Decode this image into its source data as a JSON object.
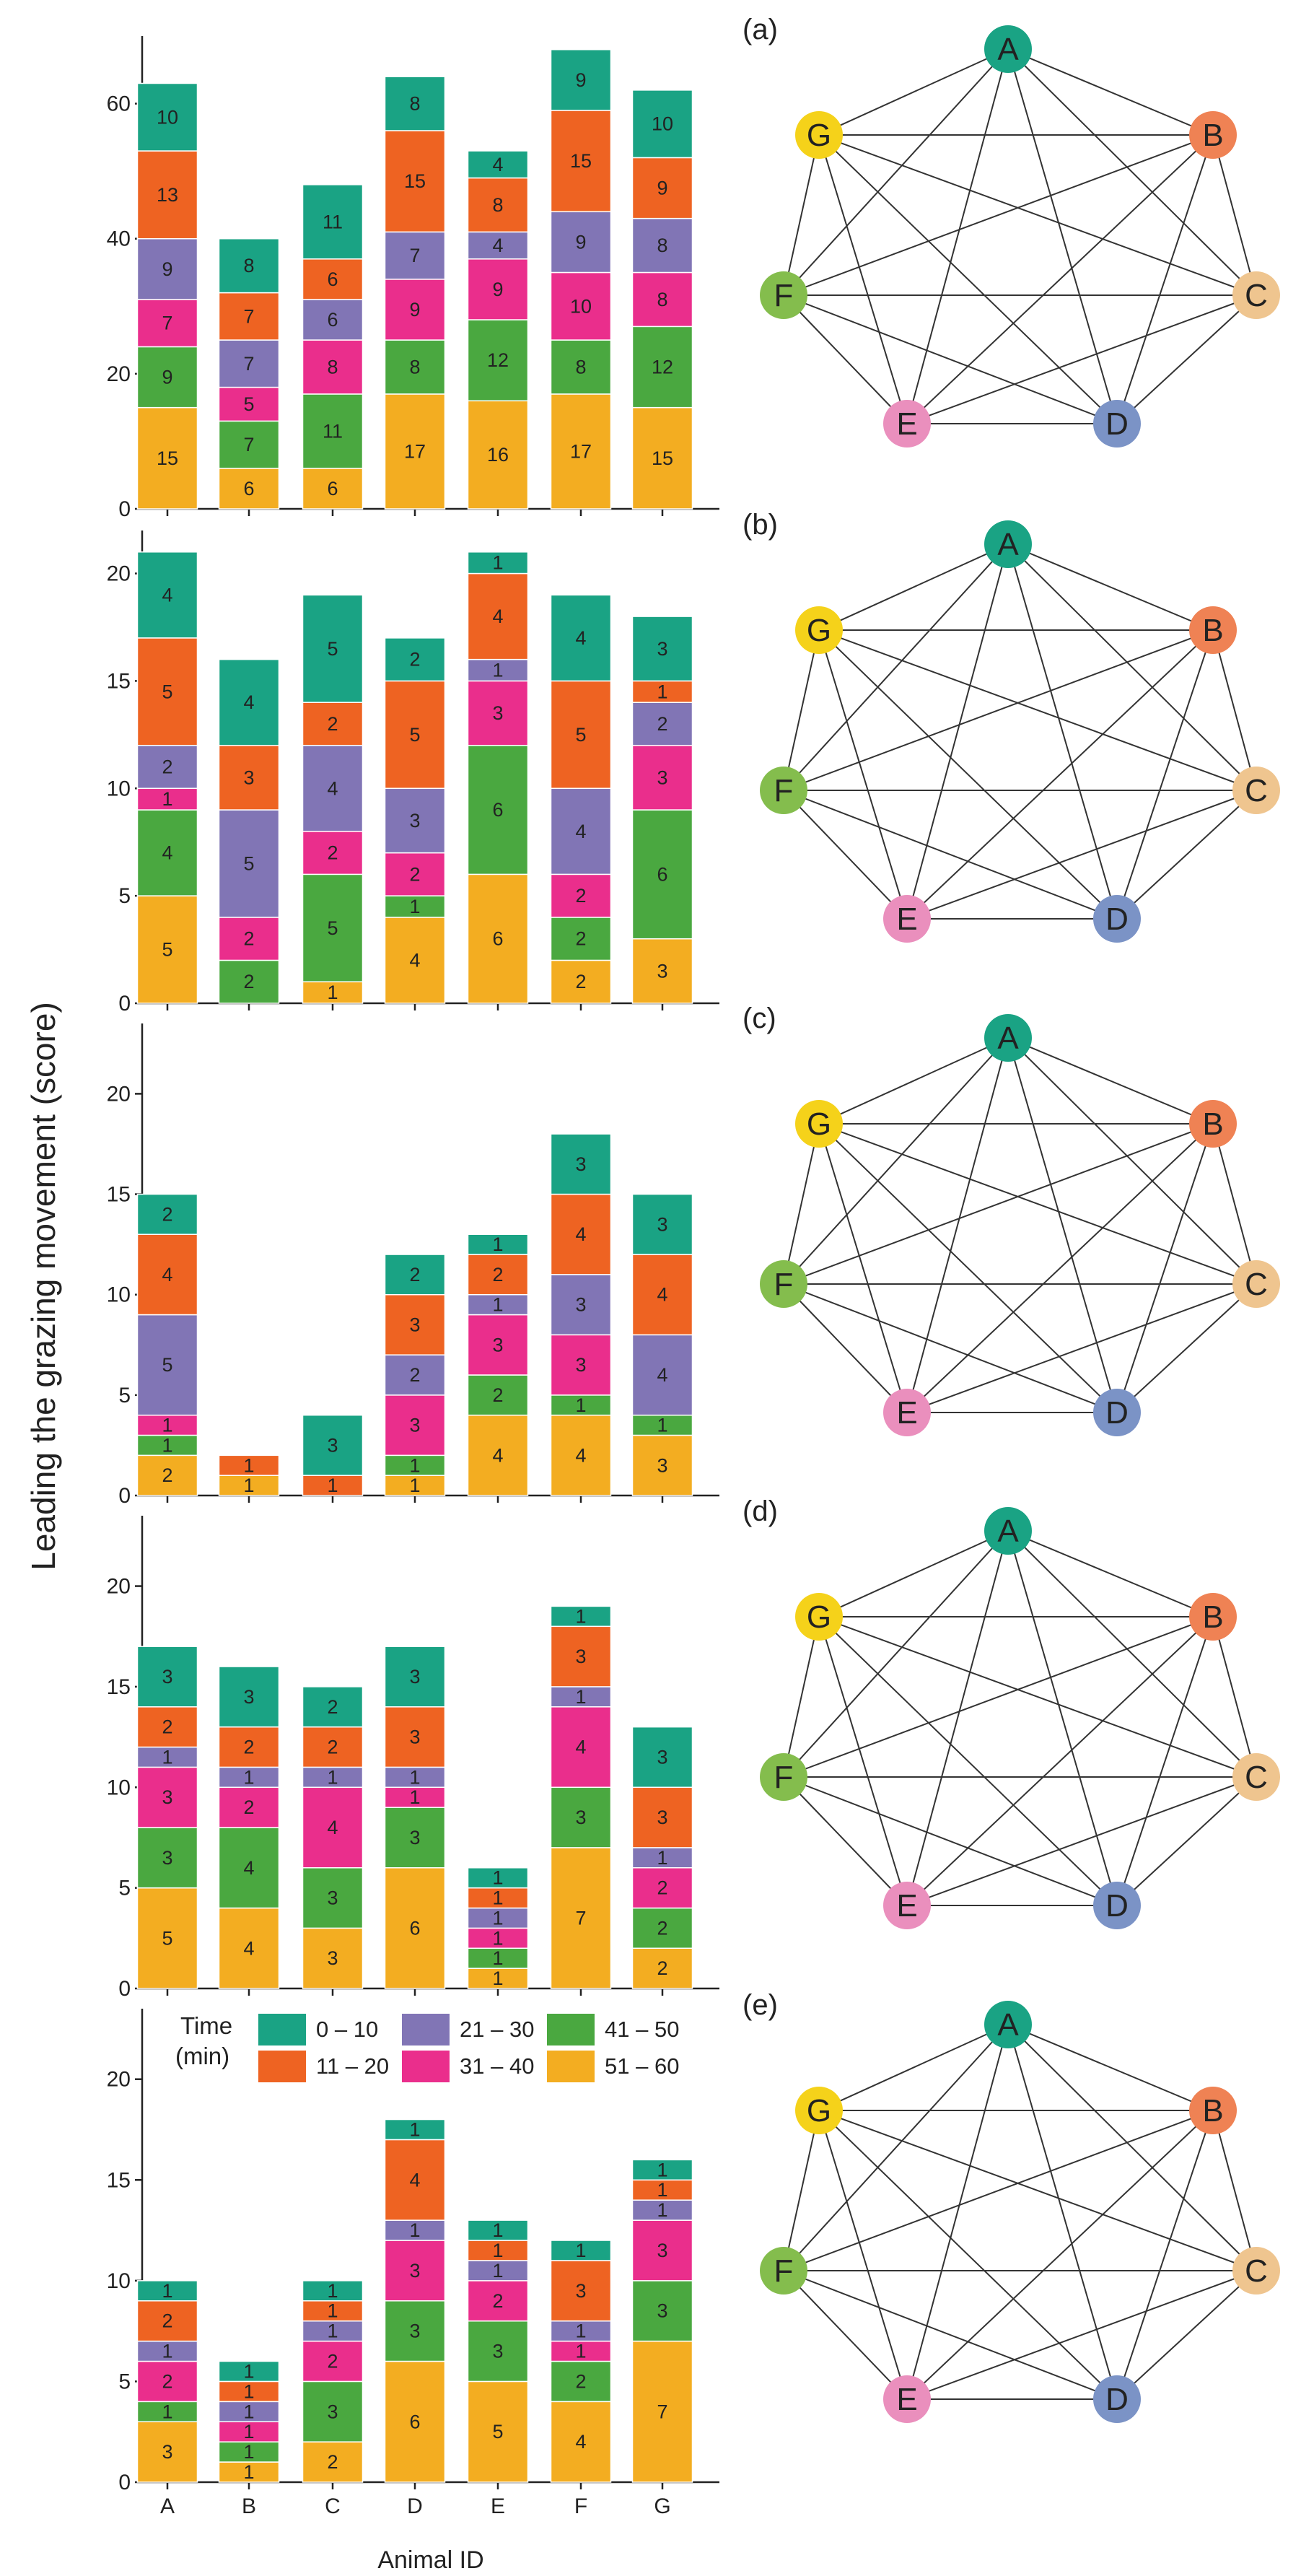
{
  "figure": {
    "ylabel": "Leading the grazing movement (score)",
    "xlabel": "Animal ID",
    "legend_title_line1": "Time",
    "legend_title_line2": "(min)"
  },
  "colors": {
    "0 – 10": "#1aa384",
    "11 – 20": "#ee6322",
    "21 – 30": "#8175b5",
    "31 – 40": "#ea2e8c",
    "41 – 50": "#4aa840",
    "51 – 60": "#f3ad21"
  },
  "node_colors": {
    "A": "#1aa384",
    "B": "#ef8254",
    "C": "#efc58f",
    "D": "#7b93c6",
    "E": "#ea8fbd",
    "F": "#84bd4d",
    "G": "#f5d21a"
  },
  "chart_data": [
    {
      "type": "bar",
      "stacked": true,
      "panel": "(a)",
      "categories": [
        "A",
        "B",
        "C",
        "D",
        "E",
        "F",
        "G"
      ],
      "ylim": [
        0,
        70
      ],
      "yticks": [
        0,
        20,
        40,
        60
      ],
      "series": [
        {
          "name": "51 – 60",
          "values": [
            15,
            6,
            6,
            17,
            16,
            17,
            15
          ]
        },
        {
          "name": "41 – 50",
          "values": [
            9,
            7,
            11,
            8,
            12,
            8,
            12
          ]
        },
        {
          "name": "31 – 40",
          "values": [
            7,
            5,
            8,
            9,
            9,
            10,
            8
          ]
        },
        {
          "name": "21 – 30",
          "values": [
            9,
            7,
            6,
            7,
            4,
            9,
            8
          ]
        },
        {
          "name": "11 – 20",
          "values": [
            13,
            7,
            6,
            15,
            8,
            15,
            9
          ]
        },
        {
          "name": "0 – 10",
          "values": [
            10,
            8,
            11,
            8,
            4,
            9,
            10
          ]
        }
      ]
    },
    {
      "type": "bar",
      "stacked": true,
      "panel": "(b)",
      "categories": [
        "A",
        "B",
        "C",
        "D",
        "E",
        "F",
        "G"
      ],
      "ylim": [
        0,
        22
      ],
      "yticks": [
        0,
        5,
        10,
        15,
        20
      ],
      "series": [
        {
          "name": "51 – 60",
          "values": [
            5,
            0,
            1,
            4,
            6,
            2,
            3
          ]
        },
        {
          "name": "41 – 50",
          "values": [
            4,
            2,
            5,
            1,
            6,
            2,
            6
          ]
        },
        {
          "name": "31 – 40",
          "values": [
            1,
            2,
            2,
            2,
            3,
            2,
            3
          ]
        },
        {
          "name": "21 – 30",
          "values": [
            2,
            5,
            4,
            3,
            1,
            4,
            2
          ]
        },
        {
          "name": "11 – 20",
          "values": [
            5,
            3,
            2,
            5,
            4,
            5,
            1
          ]
        },
        {
          "name": "0 – 10",
          "values": [
            4,
            4,
            5,
            2,
            1,
            4,
            3
          ]
        }
      ]
    },
    {
      "type": "bar",
      "stacked": true,
      "panel": "(c)",
      "categories": [
        "A",
        "B",
        "C",
        "D",
        "E",
        "F",
        "G"
      ],
      "ylim": [
        0,
        23.5
      ],
      "yticks": [
        0,
        5,
        10,
        15,
        20
      ],
      "series": [
        {
          "name": "51 – 60",
          "values": [
            2,
            1,
            0,
            1,
            4,
            4,
            3
          ]
        },
        {
          "name": "41 – 50",
          "values": [
            1,
            0,
            0,
            1,
            2,
            1,
            1
          ]
        },
        {
          "name": "31 – 40",
          "values": [
            1,
            0,
            0,
            3,
            3,
            3,
            0
          ]
        },
        {
          "name": "21 – 30",
          "values": [
            5,
            0,
            0,
            2,
            1,
            3,
            4
          ]
        },
        {
          "name": "11 – 20",
          "values": [
            4,
            1,
            1,
            3,
            2,
            4,
            4
          ]
        },
        {
          "name": "0 – 10",
          "values": [
            2,
            0,
            3,
            2,
            1,
            3,
            3
          ]
        }
      ]
    },
    {
      "type": "bar",
      "stacked": true,
      "panel": "(d)",
      "categories": [
        "A",
        "B",
        "C",
        "D",
        "E",
        "F",
        "G"
      ],
      "ylim": [
        0,
        23.5
      ],
      "yticks": [
        0,
        5,
        10,
        15,
        20
      ],
      "series": [
        {
          "name": "51 – 60",
          "values": [
            5,
            4,
            3,
            6,
            1,
            7,
            2
          ]
        },
        {
          "name": "41 – 50",
          "values": [
            3,
            4,
            3,
            3,
            1,
            3,
            2
          ]
        },
        {
          "name": "31 – 40",
          "values": [
            3,
            2,
            4,
            1,
            1,
            4,
            2
          ]
        },
        {
          "name": "21 – 30",
          "values": [
            1,
            1,
            1,
            1,
            1,
            1,
            1
          ]
        },
        {
          "name": "11 – 20",
          "values": [
            2,
            2,
            2,
            3,
            1,
            3,
            3
          ]
        },
        {
          "name": "0 – 10",
          "values": [
            3,
            3,
            2,
            3,
            1,
            1,
            3
          ]
        }
      ]
    },
    {
      "type": "bar",
      "stacked": true,
      "panel": "(e)",
      "categories": [
        "A",
        "B",
        "C",
        "D",
        "E",
        "F",
        "G"
      ],
      "ylim": [
        0,
        23.5
      ],
      "yticks": [
        0,
        5,
        10,
        15,
        20
      ],
      "series": [
        {
          "name": "51 – 60",
          "values": [
            3,
            1,
            2,
            6,
            5,
            4,
            7
          ]
        },
        {
          "name": "41 – 50",
          "values": [
            1,
            1,
            3,
            3,
            3,
            2,
            3
          ]
        },
        {
          "name": "31 – 40",
          "values": [
            2,
            1,
            2,
            3,
            2,
            1,
            3
          ]
        },
        {
          "name": "21 – 30",
          "values": [
            1,
            1,
            1,
            1,
            1,
            1,
            1
          ]
        },
        {
          "name": "11 – 20",
          "values": [
            2,
            1,
            1,
            4,
            1,
            3,
            1
          ]
        },
        {
          "name": "0 – 10",
          "values": [
            1,
            1,
            1,
            1,
            1,
            1,
            1
          ]
        }
      ]
    }
  ]
}
